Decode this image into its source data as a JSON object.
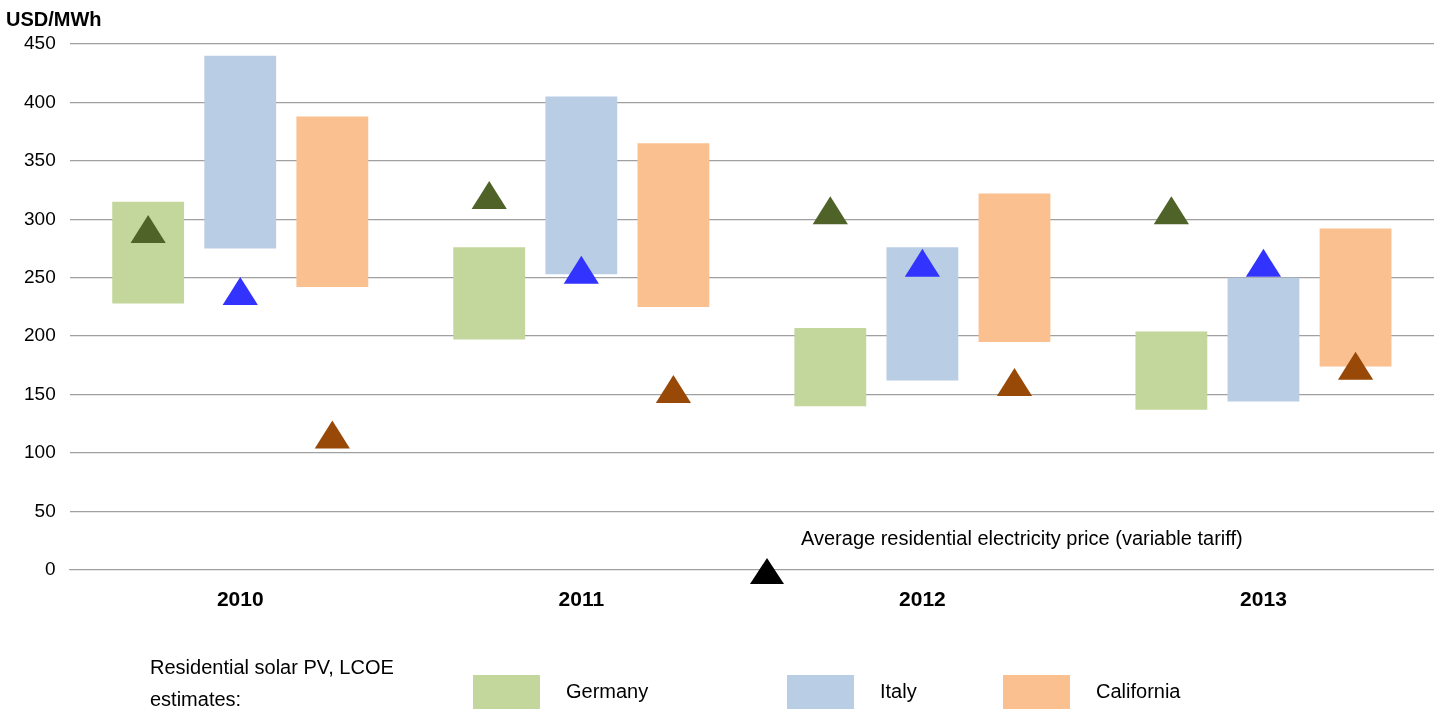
{
  "chart_data": {
    "type": "bar",
    "ylabel": "USD/MWh",
    "legend_title": "Residential solar PV, LCOE estimates:",
    "categories": [
      "2010",
      "2011",
      "2012",
      "2013"
    ],
    "series": [
      {
        "name": "Germany",
        "color": "#c3d69b",
        "base": [
          228,
          197,
          140,
          137
        ],
        "values": [
          87,
          79,
          67,
          67
        ]
      },
      {
        "name": "Italy",
        "color": "#b9cde5",
        "base": [
          275,
          253,
          162,
          144
        ],
        "values": [
          165,
          152,
          114,
          106
        ]
      },
      {
        "name": "California",
        "color": "#fac090",
        "base": [
          242,
          225,
          195,
          174
        ],
        "values": [
          146,
          140,
          127,
          118
        ]
      },
      {
        "type": "scatter",
        "color": "#4f6228",
        "values": [
          290,
          319,
          306,
          306
        ]
      },
      {
        "type": "scatter",
        "color": "#3333ff",
        "values": [
          237,
          255,
          261,
          261
        ]
      },
      {
        "type": "scatter",
        "color": "#984807",
        "values": [
          114,
          153,
          159,
          173
        ]
      }
    ],
    "annotations": [
      "Average residential electricity price (variable tariff)"
    ],
    "marker": "triangle",
    "ylim": [
      0,
      450
    ],
    "yticks": [
      0,
      50,
      100,
      150,
      200,
      250,
      300,
      350,
      400,
      450
    ],
    "grid": "y",
    "legend": "bottom"
  }
}
